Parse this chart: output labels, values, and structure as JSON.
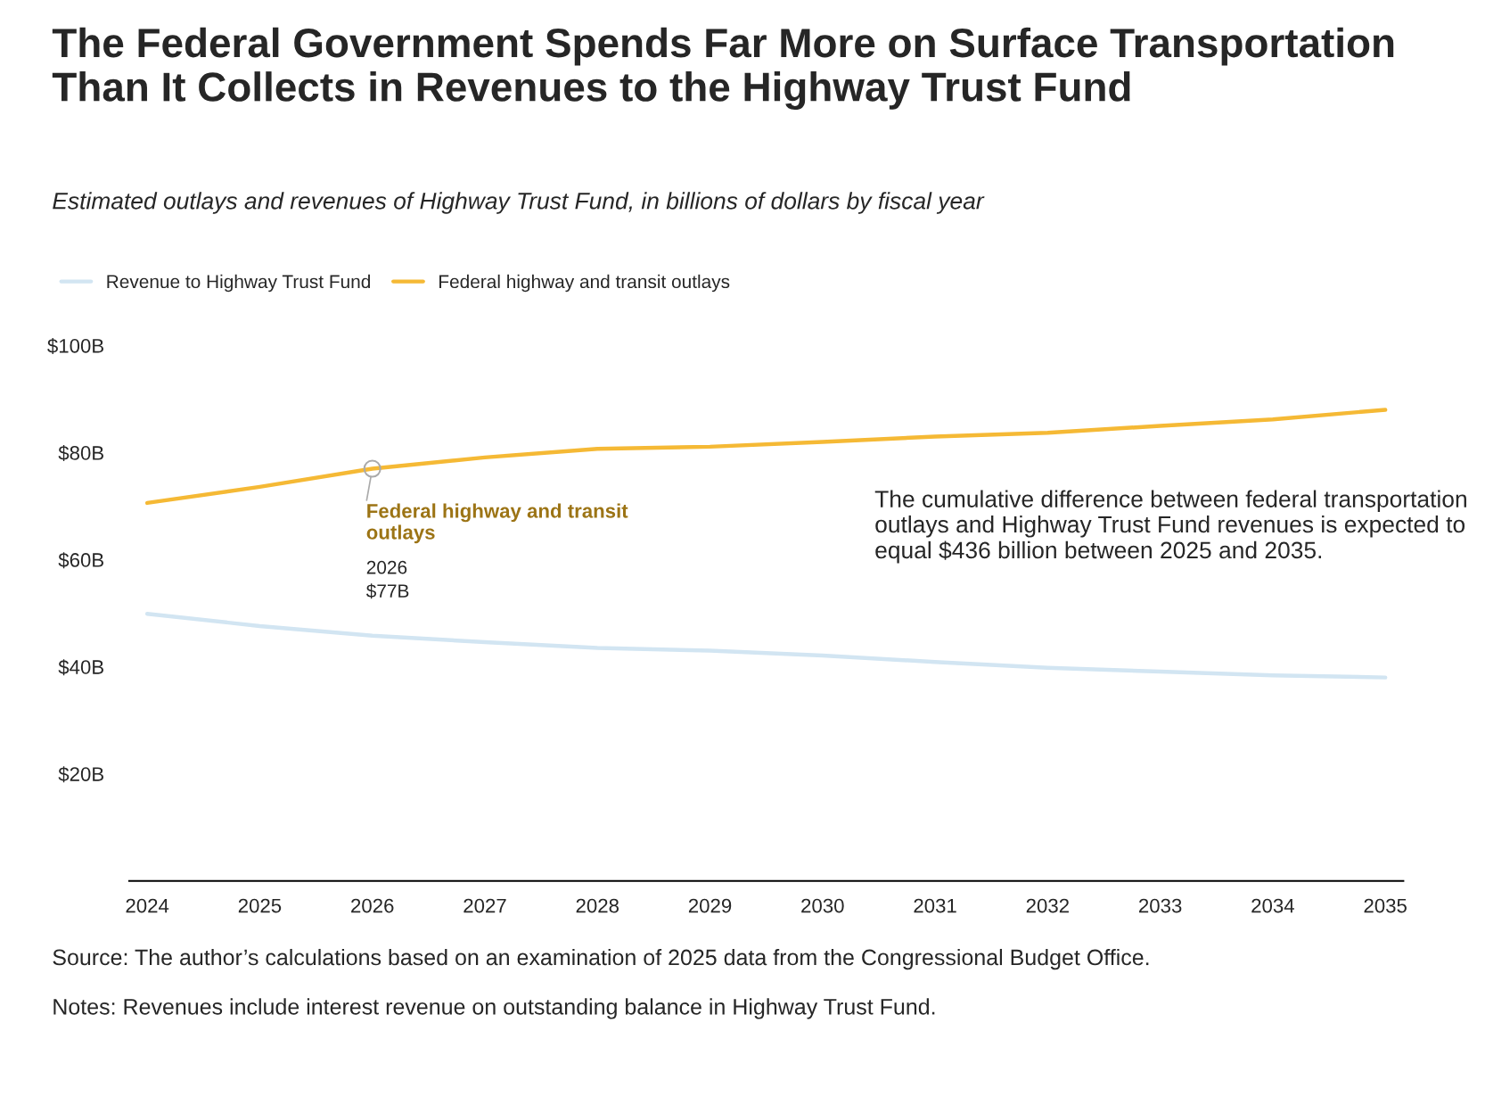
{
  "chart_data": {
    "type": "line",
    "title": "The Federal Government Spends Far More on Surface Transportation Than It Collects in Revenues to the Highway Trust Fund",
    "subtitle": "Estimated outlays and revenues of Highway Trust Fund, in billions of dollars by fiscal year",
    "x": [
      2024,
      2025,
      2026,
      2027,
      2028,
      2029,
      2030,
      2031,
      2032,
      2033,
      2034,
      2035
    ],
    "series": [
      {
        "name": "Revenue to Highway Trust Fund",
        "color": "#d2e5f2",
        "values": [
          49.9,
          47.6,
          45.8,
          44.6,
          43.5,
          43.0,
          42.1,
          40.9,
          39.8,
          39.1,
          38.4,
          38.0
        ]
      },
      {
        "name": "Federal highway and transit outlays",
        "color": "#f5b935",
        "values": [
          70.6,
          73.6,
          77.0,
          79.1,
          80.7,
          81.1,
          82.0,
          83.0,
          83.7,
          85.0,
          86.2,
          88.0
        ]
      }
    ],
    "xlim": [
      2023.84,
      2035.16
    ],
    "xticks": [
      2024,
      2025,
      2026,
      2027,
      2028,
      2029,
      2030,
      2031,
      2032,
      2033,
      2034,
      2035
    ],
    "ylim": [
      0,
      100
    ],
    "yticks": [
      {
        "value": 20,
        "label": "$20B"
      },
      {
        "value": 40,
        "label": "$40B"
      },
      {
        "value": 60,
        "label": "$60B"
      },
      {
        "value": 80,
        "label": "$80B"
      },
      {
        "value": 100,
        "label": "$100B"
      }
    ],
    "grid": false,
    "legend": "top left",
    "marker": "none",
    "line_style": "solid",
    "annotations": [
      {
        "text": "Federal highway and transit outlays",
        "x": 2026,
        "y": 77
      },
      "2026",
      "$77B",
      "The cumulative difference between federal transportation outlays and Highway Trust Fund revenues is expected to equal $436 billion between 2025 and 2035.",
      "Source: The author’s calculations based on an examination of 2025 data from the Congressional Budget Office.",
      "Notes: Revenues include interest revenue on outstanding balance in Highway Trust Fund."
    ]
  }
}
